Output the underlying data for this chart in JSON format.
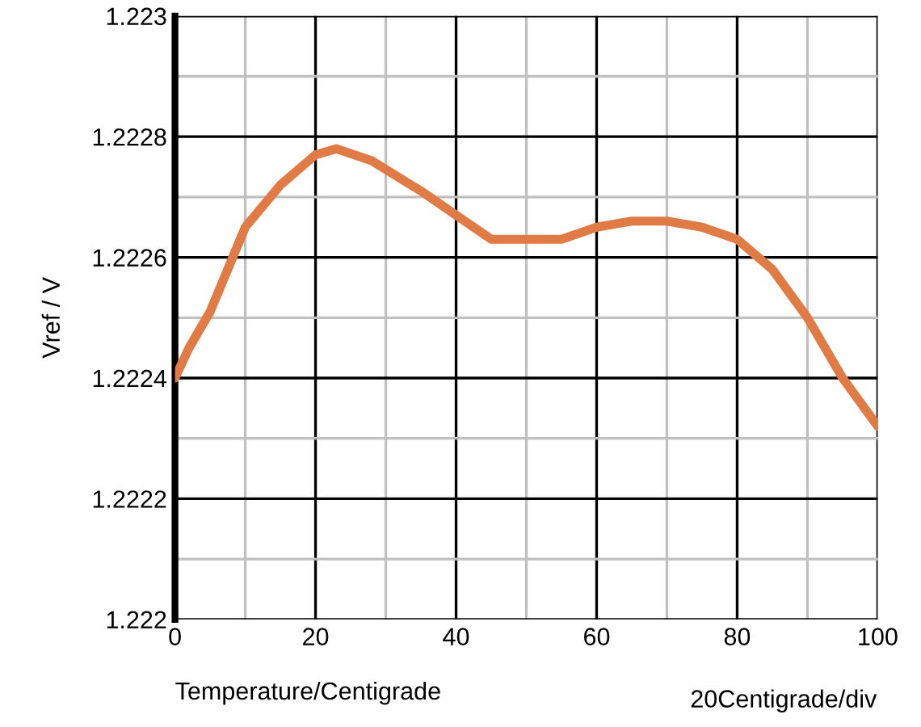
{
  "chart_data": {
    "type": "line",
    "xlabel": "Temperature/Centigrade",
    "ylabel": "Vref / V",
    "annotations": [
      "20Centigrade/div"
    ],
    "x": [
      0,
      2,
      5,
      10,
      15,
      20,
      23,
      28,
      35,
      40,
      45,
      50,
      55,
      60,
      65,
      70,
      75,
      80,
      85,
      90,
      95,
      100
    ],
    "series": [
      {
        "color": "#e07b45",
        "values": [
          1.2224,
          1.22245,
          1.22251,
          1.22265,
          1.22272,
          1.22277,
          1.22278,
          1.22276,
          1.22271,
          1.22267,
          1.22263,
          1.22263,
          1.22263,
          1.22265,
          1.22266,
          1.22266,
          1.22265,
          1.22263,
          1.22258,
          1.2225,
          1.2224,
          1.22232
        ]
      }
    ],
    "xlim": [
      0,
      100
    ],
    "xticks": [
      0,
      20,
      40,
      60,
      80,
      100
    ],
    "ylim": [
      1.222,
      1.223
    ],
    "yticks": [
      1.222,
      1.2222,
      1.2224,
      1.2226,
      1.2228,
      1.223
    ],
    "grid": true,
    "legend": false,
    "marker": "none",
    "line_style": "solid"
  }
}
